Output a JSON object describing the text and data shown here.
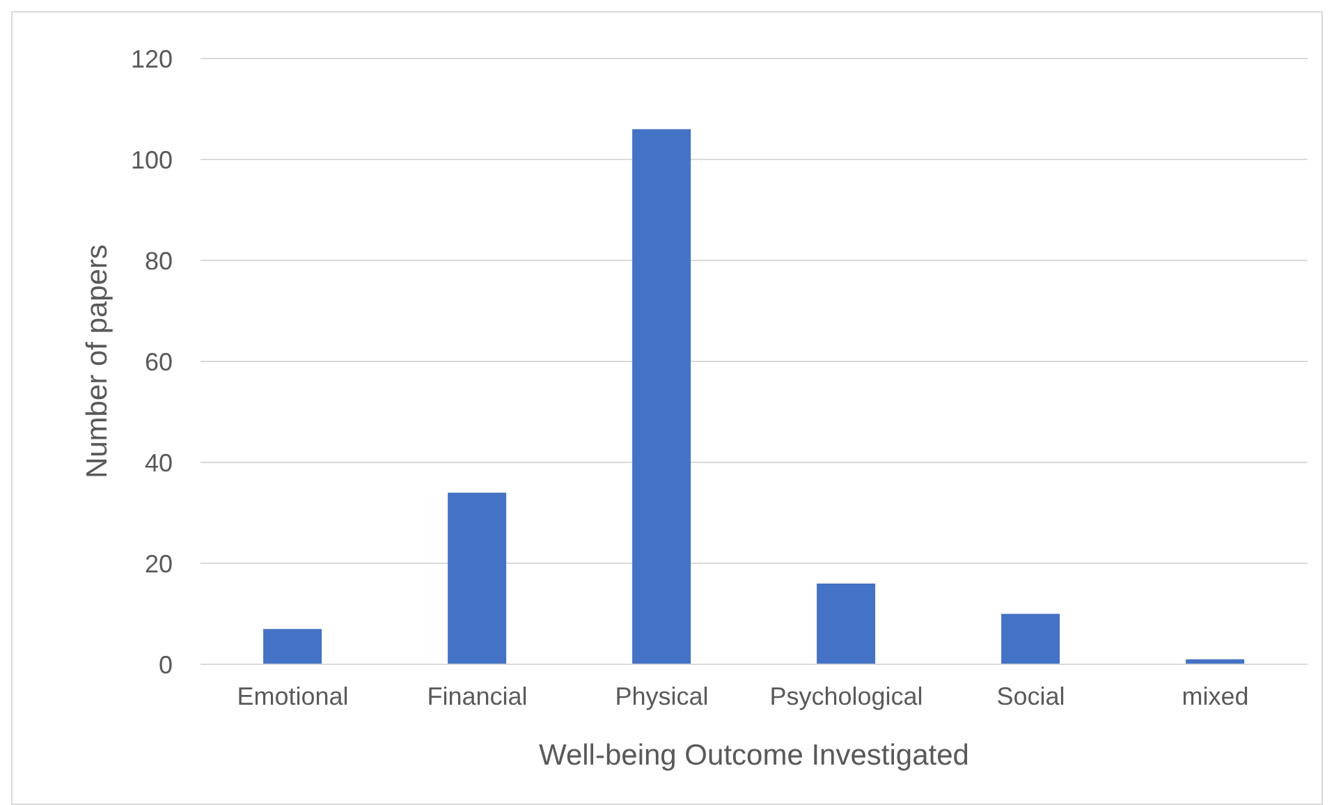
{
  "chart_data": {
    "type": "bar",
    "xlabel": "Well-being Outcome Investigated",
    "ylabel": "Number of papers",
    "categories": [
      "Emotional",
      "Financial",
      "Physical",
      "Psychological",
      "Social",
      "mixed"
    ],
    "values": [
      7,
      34,
      106,
      16,
      10,
      1
    ],
    "color": "#4472c4",
    "ylim": [
      0,
      120
    ],
    "yticks": [
      0,
      20,
      40,
      60,
      80,
      100,
      120
    ],
    "grid": "y"
  }
}
